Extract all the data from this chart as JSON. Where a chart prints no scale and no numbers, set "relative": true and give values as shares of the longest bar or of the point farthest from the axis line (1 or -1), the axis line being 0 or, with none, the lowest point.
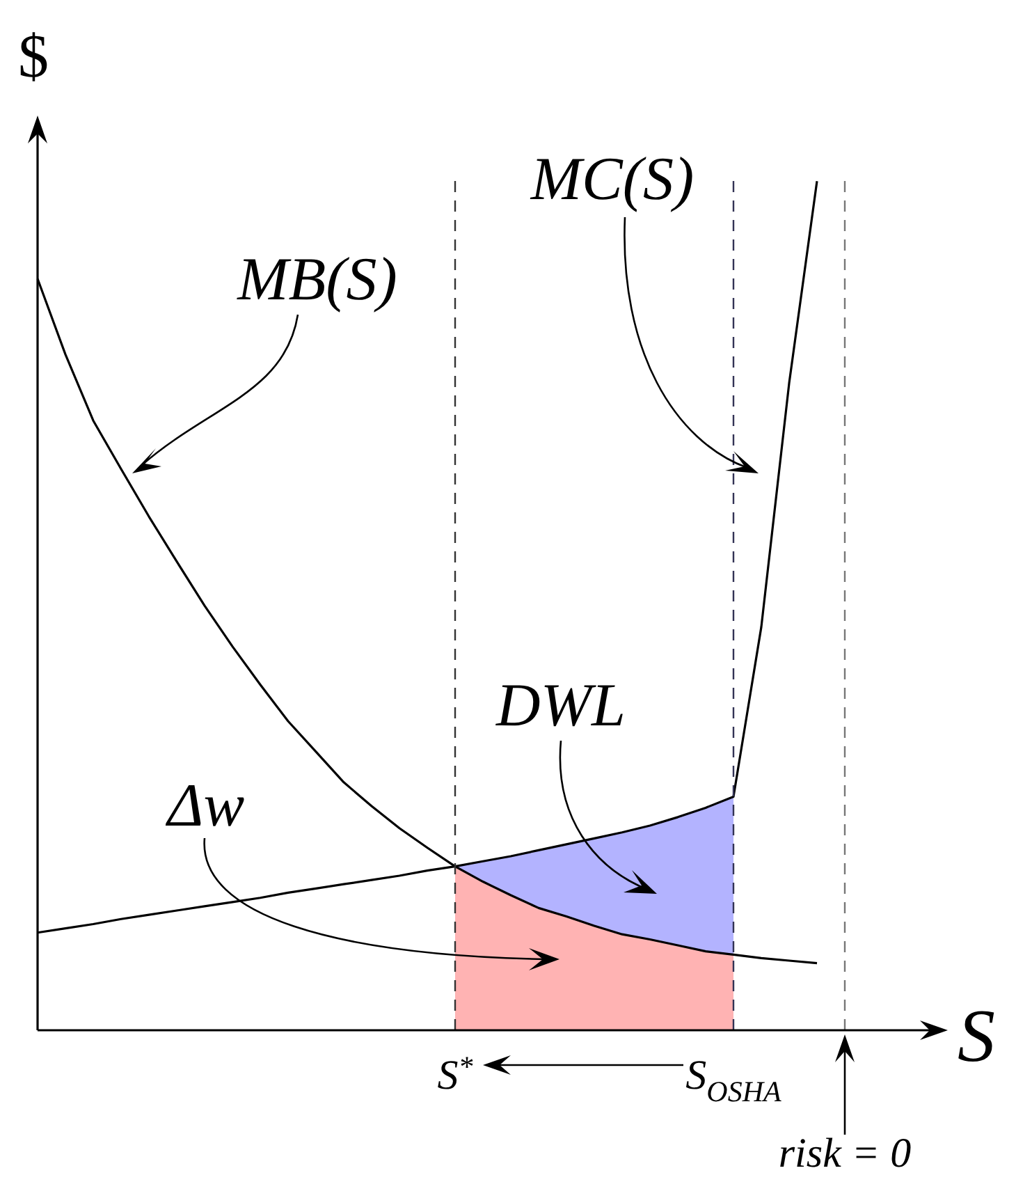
{
  "chart_data": {
    "type": "line",
    "relative": true,
    "xlabel": "S",
    "ylabel": "$",
    "legend": false,
    "marker": "none",
    "categories": [
      null,
      null,
      null,
      null,
      null,
      null,
      null,
      null,
      null,
      null,
      null,
      null,
      null,
      null,
      null,
      "S$^{*}$",
      null,
      null,
      null,
      null,
      null,
      null,
      null,
      null,
      null,
      "S$_{OSHA}$",
      null,
      null,
      null,
      "risk = 0",
      null,
      null,
      null
    ],
    "series": [
      {
        "name": "MB(S)",
        "color": "#000000",
        "values": [
          0.885,
          0.796,
          0.718,
          0.661,
          0.605,
          0.552,
          0.5,
          0.452,
          0.407,
          0.364,
          0.328,
          0.292,
          0.264,
          0.238,
          0.215,
          0.193,
          0.175,
          0.159,
          0.144,
          0.134,
          0.123,
          0.113,
          0.107,
          0.1,
          0.093,
          0.089,
          0.085,
          0.082,
          0.079,
          null,
          null,
          null,
          null
        ]
      },
      {
        "name": "MC(S)",
        "color": "#000000",
        "values": [
          0.115,
          0.12,
          0.125,
          0.131,
          0.136,
          0.141,
          0.146,
          0.151,
          0.156,
          0.162,
          0.167,
          0.172,
          0.177,
          0.182,
          0.188,
          0.193,
          0.199,
          0.205,
          0.212,
          0.219,
          0.226,
          0.233,
          0.241,
          0.251,
          0.262,
          0.275,
          0.475,
          0.762,
          1.0,
          null,
          null,
          null,
          null
        ]
      },
      {
        "name": "Δw",
        "type": "area",
        "color": "#ffb3b3",
        "values": [
          null,
          null,
          null,
          null,
          null,
          null,
          null,
          null,
          null,
          null,
          null,
          null,
          null,
          null,
          null,
          0.193,
          0.175,
          0.159,
          0.144,
          0.134,
          0.123,
          0.113,
          0.107,
          0.1,
          0.093,
          0.089,
          null,
          null,
          null,
          null,
          null,
          null,
          null
        ]
      },
      {
        "name": "DWL",
        "type": "area",
        "color": "#b3b3ff",
        "values": [
          null,
          null,
          null,
          null,
          null,
          null,
          null,
          null,
          null,
          null,
          null,
          null,
          null,
          null,
          null,
          0.193,
          0.199,
          0.205,
          0.212,
          0.219,
          0.226,
          0.233,
          0.241,
          0.251,
          0.262,
          0.275,
          null,
          null,
          null,
          null,
          null,
          null,
          null
        ]
      }
    ],
    "ref_lines": [
      {
        "axis": "x",
        "value": "S$^{*}$",
        "color": "#333333",
        "line_style": "dashed"
      },
      {
        "axis": "x",
        "value": "S$_{OSHA}$",
        "color": "#333355",
        "line_style": "dashed"
      },
      {
        "axis": "x",
        "value": "risk = 0",
        "color": "#777777",
        "line_style": "dashed"
      }
    ]
  }
}
